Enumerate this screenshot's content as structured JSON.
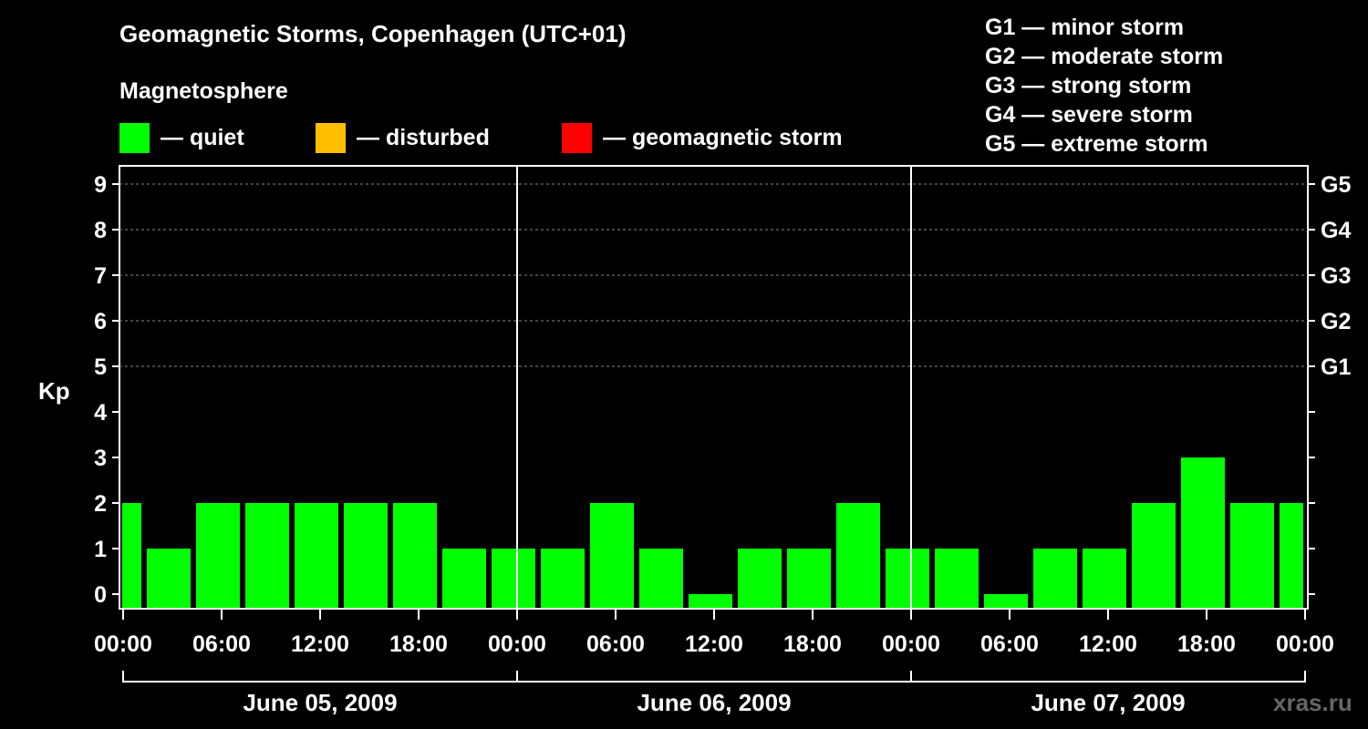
{
  "header": {
    "title": "Geomagnetic Storms, Copenhagen (UTC+01)",
    "subtitle": "Magnetosphere"
  },
  "legend": [
    {
      "label": "— quiet",
      "color": "#00ff00"
    },
    {
      "label": "— disturbed",
      "color": "#ffbf00"
    },
    {
      "label": "— geomagnetic storm",
      "color": "#ff0000"
    }
  ],
  "storm_scale": [
    "G1 — minor storm",
    "G2 — moderate storm",
    "G3 — strong storm",
    "G4 — severe storm",
    "G5 — extreme storm"
  ],
  "watermark": "xras.ru",
  "chart_data": {
    "type": "bar",
    "ylabel": "Kp",
    "ylim": [
      0,
      9
    ],
    "yticks": [
      "0",
      "1",
      "2",
      "3",
      "4",
      "5",
      "6",
      "7",
      "8",
      "9"
    ],
    "right_labels": [
      {
        "kp": 5,
        "label": "G1"
      },
      {
        "kp": 6,
        "label": "G2"
      },
      {
        "kp": 7,
        "label": "G3"
      },
      {
        "kp": 8,
        "label": "G4"
      },
      {
        "kp": 9,
        "label": "G5"
      }
    ],
    "x_tick_labels": [
      "00:00",
      "06:00",
      "12:00",
      "18:00",
      "00:00",
      "06:00",
      "12:00",
      "18:00",
      "00:00",
      "06:00",
      "12:00",
      "18:00",
      "00:00"
    ],
    "days": [
      "June 05, 2009",
      "June 06, 2009",
      "June 07, 2009"
    ],
    "interval_hours": 3,
    "values": [
      2,
      1,
      2,
      2,
      2,
      2,
      2,
      1,
      1,
      1,
      2,
      1,
      0,
      1,
      1,
      2,
      1,
      1,
      0,
      1,
      1,
      2,
      3,
      2,
      2
    ],
    "bar_color": "#00ff00",
    "grid": true
  }
}
